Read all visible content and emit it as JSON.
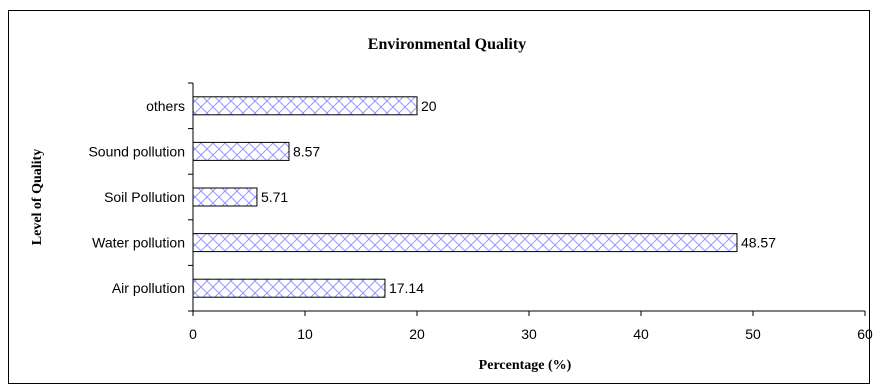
{
  "chart_data": {
    "type": "bar",
    "orientation": "horizontal",
    "title": "Environmental Quality",
    "xlabel": "Percentage (%)",
    "ylabel": "Level of Quality",
    "categories": [
      "Air pollution",
      "Water pollution",
      "Soil Pollution",
      "Sound pollution",
      "others"
    ],
    "values": [
      17.14,
      48.57,
      5.71,
      8.57,
      20
    ],
    "data_labels": [
      "17.14",
      "48.57",
      "5.71",
      "8.57",
      "20"
    ],
    "xlim": [
      0,
      60
    ],
    "xticks": [
      0,
      10,
      20,
      30,
      40,
      50,
      60
    ],
    "xtick_labels": [
      "0",
      "10",
      "20",
      "30",
      "40",
      "50",
      "60"
    ],
    "grid": false,
    "legend": "none",
    "bar_fill": "cross-hatch",
    "colors": {
      "hatch": "#9999ff",
      "bar_edge": "#000000",
      "axis": "#000000"
    }
  }
}
